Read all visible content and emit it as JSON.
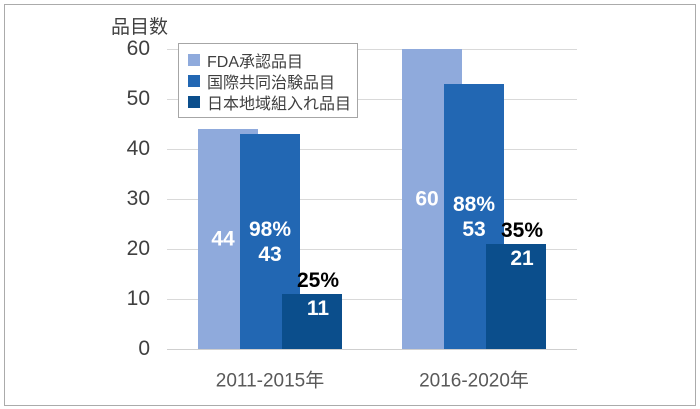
{
  "chart_data": {
    "type": "bar",
    "title": "",
    "ylabel": "品目数",
    "xlabel": "",
    "ylim": [
      0,
      60
    ],
    "y_ticks": [
      0,
      10,
      20,
      30,
      40,
      50,
      60
    ],
    "grid": true,
    "legend_position": "top-left-inside",
    "categories": [
      "2011-2015年",
      "2016-2020年"
    ],
    "series": [
      {
        "name": "FDA承認品目",
        "color": "#8FAADC",
        "values": [
          44,
          60
        ],
        "value_labels": [
          "44",
          "60"
        ],
        "pct_labels": null,
        "label_style": "inside-center-white"
      },
      {
        "name": "国際共同治験品目",
        "color": "#2267B3",
        "values": [
          43,
          53
        ],
        "value_labels": [
          "43",
          "53"
        ],
        "pct_labels": [
          "98%",
          "88%"
        ],
        "pct_placement": "inside-stacked",
        "label_style": "inside-center-white"
      },
      {
        "name": "日本地域組入れ品目",
        "color": "#0B4E8C",
        "values": [
          11,
          21
        ],
        "value_labels": [
          "11",
          "21"
        ],
        "pct_labels": [
          "25%",
          "35%"
        ],
        "pct_placement": "above-black",
        "label_style": "inside-top-white"
      }
    ],
    "colors": {
      "axis_text": "#404040",
      "category_text": "#595959",
      "gridline": "#D9D9D9",
      "frame_border": "#ABABAB",
      "inside_label": "#FFFFFF",
      "above_label": "#000000"
    }
  }
}
